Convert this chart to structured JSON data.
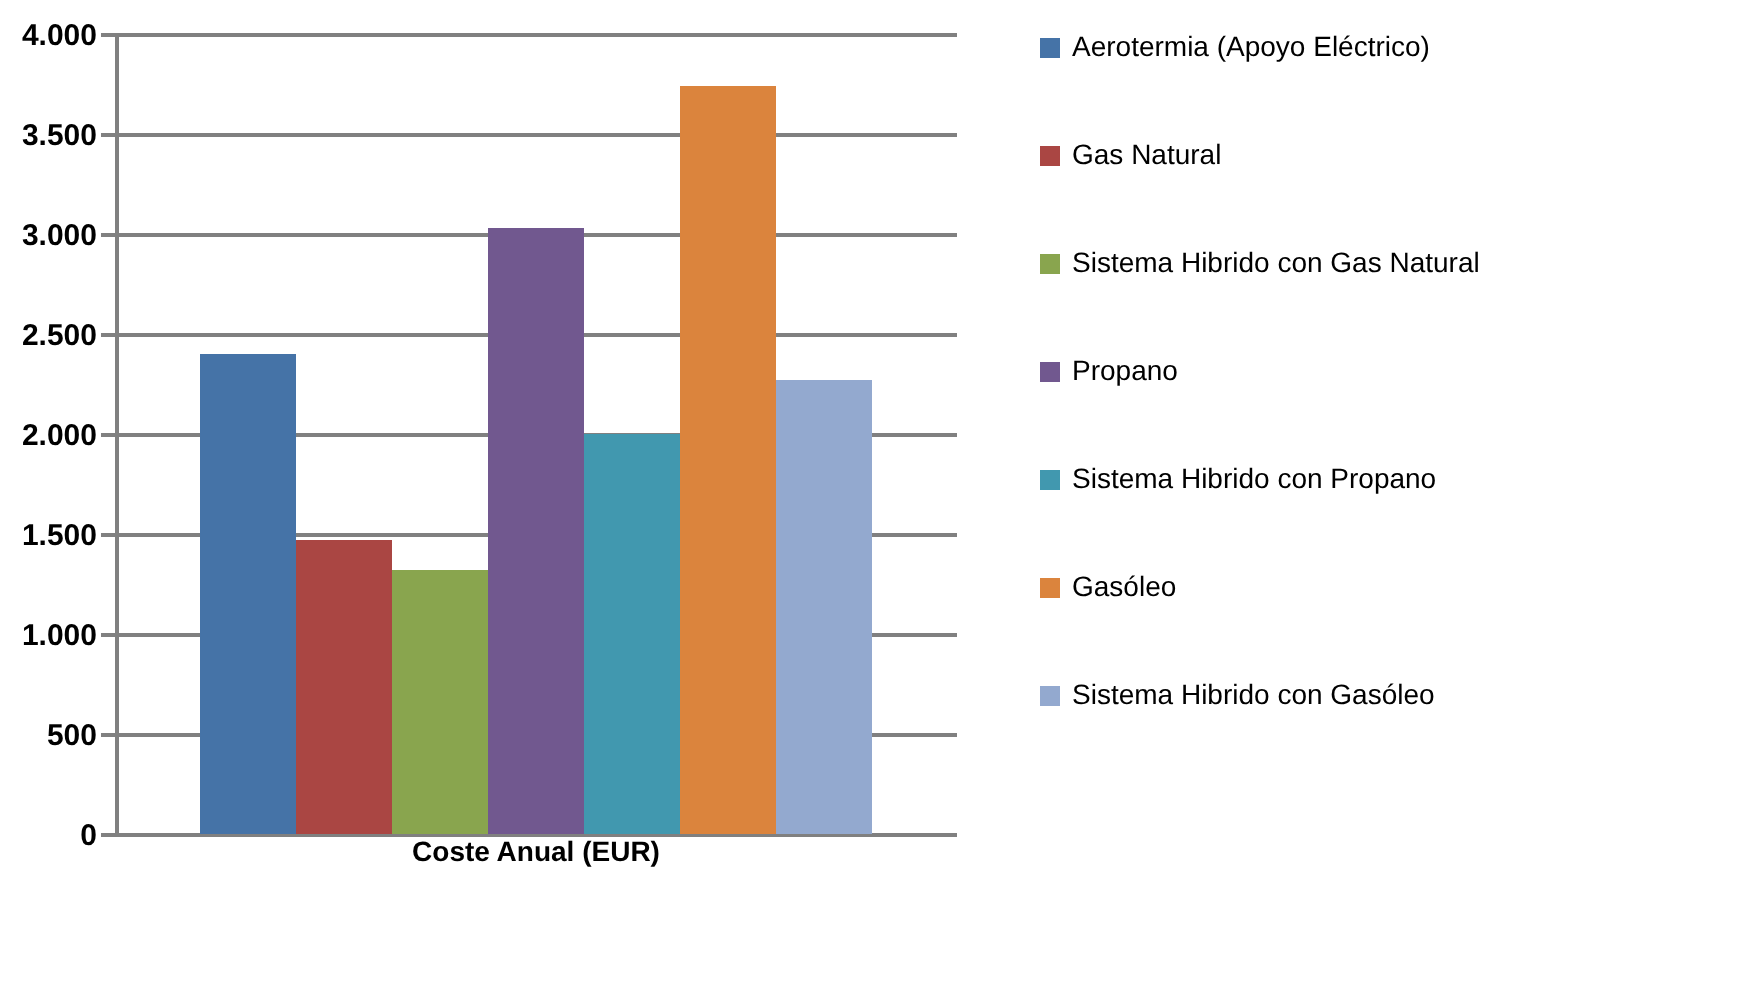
{
  "chart_data": {
    "type": "bar",
    "categories": [
      "Coste Anual (EUR)"
    ],
    "series": [
      {
        "name": "Aerotermia (Apoyo Eléctrico)",
        "color": "#4573a7",
        "values": [
          2400
        ]
      },
      {
        "name": "Gas Natural",
        "color": "#aa4643",
        "values": [
          1470
        ]
      },
      {
        "name": "Sistema Hibrido con Gas Natural",
        "color": "#89a54e",
        "values": [
          1320
        ]
      },
      {
        "name": "Propano",
        "color": "#71588f",
        "values": [
          3030
        ]
      },
      {
        "name": "Sistema Hibrido con Propano",
        "color": "#4198af",
        "values": [
          2000
        ]
      },
      {
        "name": "Gasóleo",
        "color": "#db843d",
        "values": [
          3740
        ]
      },
      {
        "name": "Sistema Hibrido con Gasóleo",
        "color": "#93a9cf",
        "values": [
          2270
        ]
      }
    ],
    "ylim": [
      0,
      4000
    ],
    "yticks": [
      0,
      500,
      {
        "value": 1000,
        "label": "1.000"
      },
      {
        "value": 1500,
        "label": "1.500"
      },
      {
        "value": 2000,
        "label": "2.000"
      },
      {
        "value": 2500,
        "label": "2.500"
      },
      {
        "value": 3000,
        "label": "3.000"
      },
      {
        "value": 3500,
        "label": "3.500"
      },
      {
        "value": 4000,
        "label": "4.000"
      }
    ],
    "grid": "y",
    "legend": "right"
  }
}
